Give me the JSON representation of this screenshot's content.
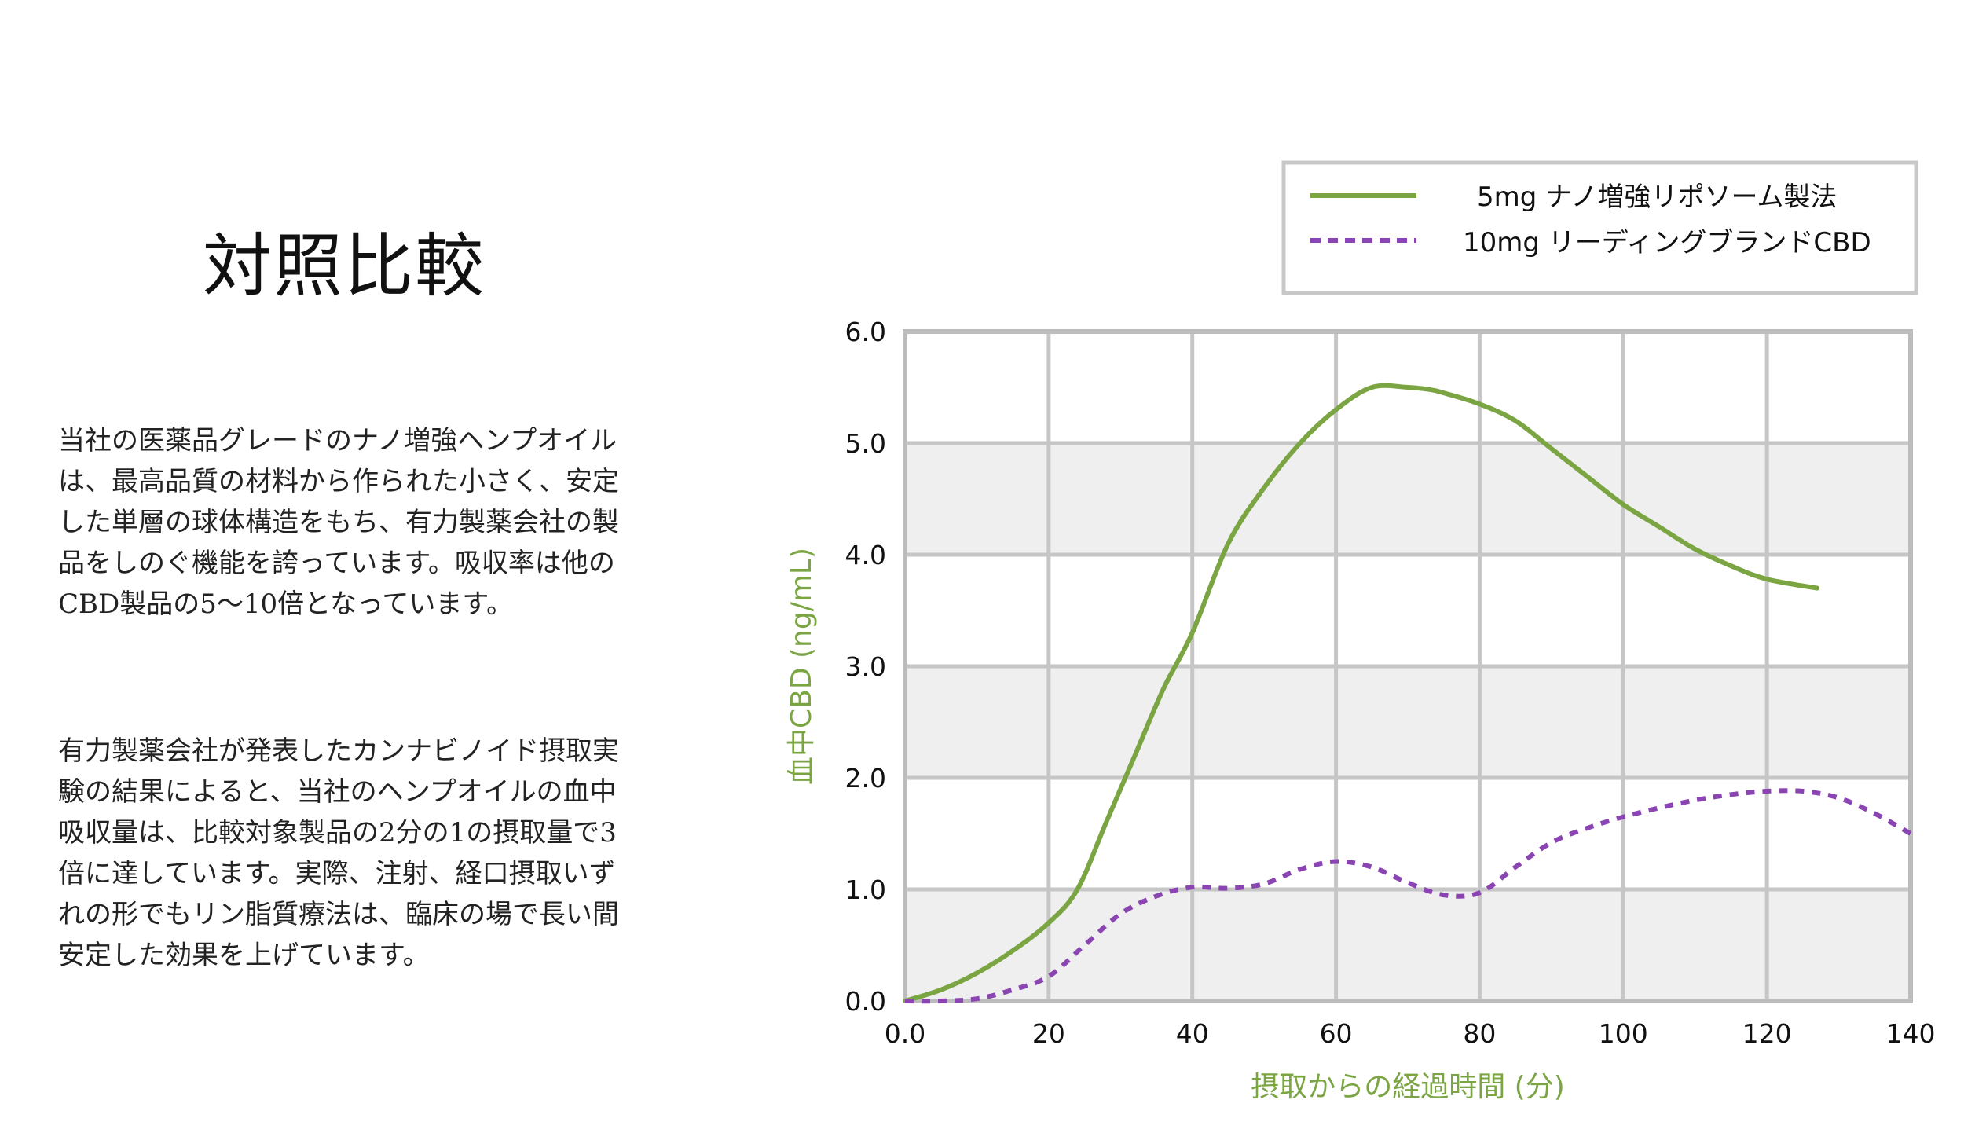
{
  "page": {
    "title": "対照比較",
    "paragraph1": [
      "当社の医薬品グレードのナノ増強ヘンプオイル",
      "は、最高品質の材料から作られた小さく、安定",
      "した単層の球体構造をもち、有力製薬会社の製",
      "品をしのぐ機能を誇っています。吸収率は他の",
      "CBD製品の5～10倍となっています。"
    ],
    "paragraph2": [
      "有力製薬会社が発表したカンナビノイド摂取実",
      "験の結果によると、当社のヘンプオイルの血中",
      "吸収量は、比較対象製品の2分の1の摂取量で3",
      "倍に達しています。実際、注射、経口摂取いず",
      "れの形でもリン脂質療法は、臨床の場で長い間",
      "安定した効果を上げています。"
    ]
  },
  "chart_data": {
    "type": "line",
    "xlabel": "摂取からの経過時間 (分)",
    "ylabel": "血中CBD (ng/mL)",
    "xlim": [
      0,
      140
    ],
    "ylim": [
      0,
      6
    ],
    "x_ticks": [
      "0.0",
      "20",
      "40",
      "60",
      "80",
      "100",
      "120",
      "140"
    ],
    "y_ticks": [
      "0.0",
      "1.0",
      "2.0",
      "3.0",
      "4.0",
      "5.0",
      "6.0"
    ],
    "grid": true,
    "legend_position": "top-right",
    "series": [
      {
        "name": "5mg ナノ増強リポソーム製法",
        "style": "solid",
        "color": "#7ba543",
        "x": [
          0,
          5,
          10,
          15,
          20,
          24,
          28,
          32,
          36,
          40,
          45,
          50,
          55,
          60,
          65,
          70,
          73,
          75,
          80,
          85,
          90,
          95,
          100,
          105,
          110,
          115,
          120,
          127
        ],
        "y": [
          0.0,
          0.1,
          0.25,
          0.45,
          0.7,
          1.0,
          1.6,
          2.2,
          2.8,
          3.3,
          4.1,
          4.6,
          5.0,
          5.3,
          5.5,
          5.5,
          5.48,
          5.45,
          5.35,
          5.2,
          4.95,
          4.7,
          4.45,
          4.25,
          4.05,
          3.9,
          3.78,
          3.7
        ]
      },
      {
        "name": "10mg リーディングブランドCBD",
        "style": "dotted",
        "color": "#8b45b3",
        "x": [
          0,
          5,
          10,
          15,
          20,
          25,
          30,
          35,
          40,
          45,
          50,
          55,
          60,
          65,
          70,
          75,
          80,
          85,
          90,
          95,
          100,
          105,
          110,
          115,
          120,
          125,
          130,
          135,
          140
        ],
        "y": [
          0.0,
          0.0,
          0.02,
          0.1,
          0.22,
          0.5,
          0.78,
          0.94,
          1.02,
          1.01,
          1.05,
          1.18,
          1.25,
          1.2,
          1.06,
          0.95,
          0.97,
          1.2,
          1.42,
          1.55,
          1.65,
          1.73,
          1.8,
          1.85,
          1.88,
          1.88,
          1.82,
          1.68,
          1.5
        ]
      }
    ]
  }
}
